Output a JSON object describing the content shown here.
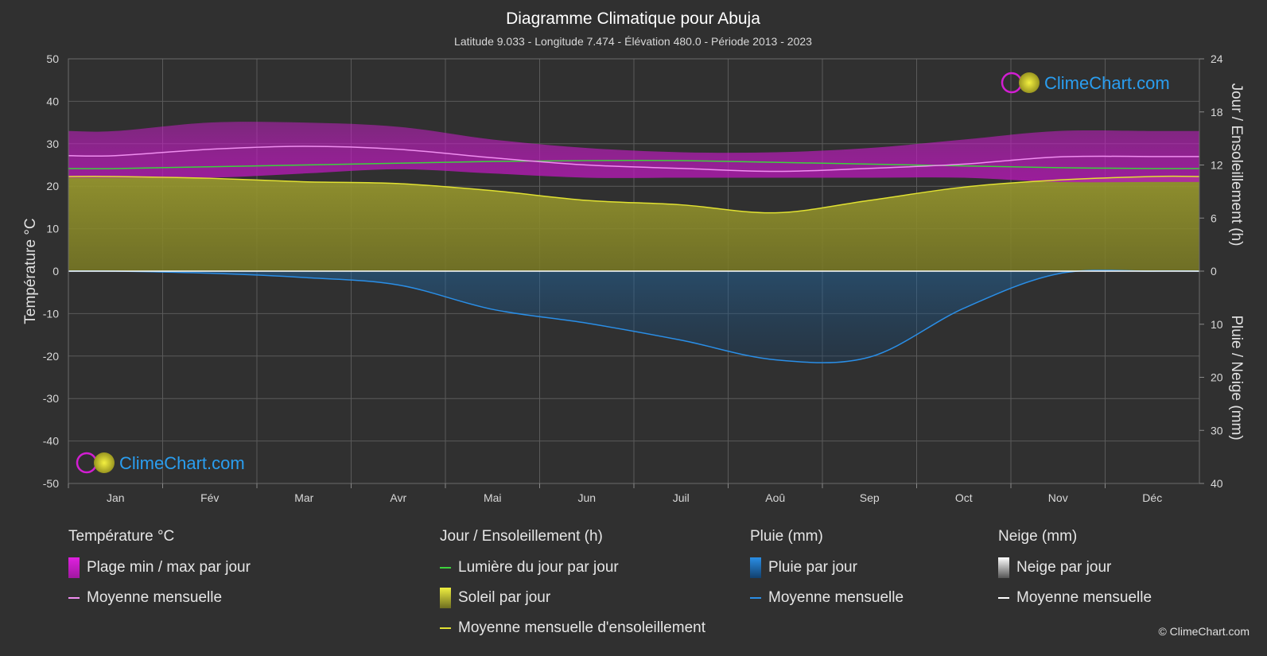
{
  "chart_data": {
    "type": "line",
    "title": "Diagramme Climatique pour Abuja",
    "subtitle": "Latitude 9.033 - Longitude 7.474 - Élévation 480.0 - Période 2013 - 2023",
    "categories": [
      "Jan",
      "Fév",
      "Mar",
      "Avr",
      "Mai",
      "Jun",
      "Juil",
      "Aoû",
      "Sep",
      "Oct",
      "Nov",
      "Déc"
    ],
    "axes": {
      "left": {
        "label": "Température °C",
        "min": -50,
        "max": 50,
        "ticks": [
          "50",
          "40",
          "30",
          "20",
          "10",
          "0",
          "-10",
          "-20",
          "-30",
          "-40",
          "-50"
        ]
      },
      "right_top": {
        "label": "Jour / Ensoleillement (h)",
        "min": 0,
        "max": 24,
        "ticks": [
          "24",
          "18",
          "12",
          "6",
          "0"
        ]
      },
      "right_bottom": {
        "label": "Pluie / Neige (mm)",
        "min": 0,
        "max": 40,
        "ticks": [
          "0",
          "10",
          "20",
          "30",
          "40"
        ]
      }
    },
    "grid": true,
    "series": [
      {
        "name": "Plage min / max par jour",
        "unit": "°C",
        "max": [
          33,
          35,
          35,
          34,
          31,
          29,
          28,
          28,
          29,
          31,
          33,
          33
        ],
        "min": [
          22,
          22,
          23,
          24,
          23,
          22,
          22,
          22,
          22,
          22,
          21,
          21
        ],
        "color": "#d21ed2"
      },
      {
        "name": "Moyenne mensuelle",
        "unit": "°C",
        "values": [
          27.2,
          28.7,
          29.4,
          28.7,
          26.7,
          25.0,
          24.2,
          23.5,
          24.2,
          25.2,
          26.9,
          27.0
        ],
        "color": "#f08ef0"
      },
      {
        "name": "Lumière du jour par jour",
        "unit": "h",
        "values": [
          11.6,
          11.8,
          12.0,
          12.2,
          12.4,
          12.5,
          12.5,
          12.3,
          12.1,
          11.9,
          11.7,
          11.6
        ],
        "color": "#3cd23c"
      },
      {
        "name": "Moyenne mensuelle d'ensoleillement",
        "unit": "h",
        "values": [
          10.7,
          10.5,
          10.1,
          9.9,
          9.1,
          8.0,
          7.5,
          6.6,
          8.0,
          9.5,
          10.3,
          10.7
        ],
        "color": "#e1e132"
      },
      {
        "name": "Pluie par jour / Moyenne mensuelle",
        "unit": "mm",
        "values": [
          0.0,
          0.4,
          1.2,
          2.6,
          7.2,
          9.8,
          13.0,
          16.7,
          16.2,
          7.0,
          0.5,
          0.0
        ],
        "color": "#2a8ee6"
      },
      {
        "name": "Neige par jour / Moyenne mensuelle",
        "unit": "mm",
        "values": [
          0,
          0,
          0,
          0,
          0,
          0,
          0,
          0,
          0,
          0,
          0,
          0
        ],
        "color": "#ffffff"
      }
    ],
    "watermark": "ClimeChart.com"
  },
  "legend": {
    "temp": {
      "title": "Température °C",
      "items": [
        "Plage min / max par jour",
        "Moyenne mensuelle"
      ]
    },
    "sun": {
      "title": "Jour / Ensoleillement (h)",
      "items": [
        "Lumière du jour par jour",
        "Soleil par jour",
        "Moyenne mensuelle d'ensoleillement"
      ]
    },
    "rain": {
      "title": "Pluie (mm)",
      "items": [
        "Pluie par jour",
        "Moyenne mensuelle"
      ]
    },
    "snow": {
      "title": "Neige (mm)",
      "items": [
        "Neige par jour",
        "Moyenne mensuelle"
      ]
    }
  },
  "copyright": "© ClimeChart.com",
  "colors": {
    "background": "#303030",
    "temp_range": "#d21ed2",
    "temp_mean": "#f08ef0",
    "daylight": "#3cd23c",
    "sunshine_fill": "#8e8e2a",
    "sunshine_mean": "#e1e132",
    "rain_fill": "#1f5f9a",
    "rain_mean": "#2a8ee6",
    "snow_mean": "#ffffff",
    "watermark_text": "#2a9ef0"
  }
}
